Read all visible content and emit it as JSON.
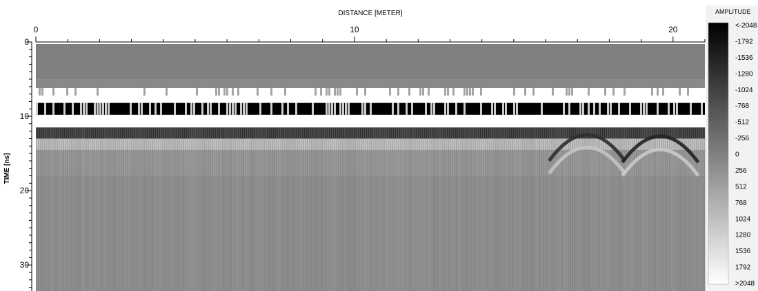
{
  "chart_data": {
    "type": "heatmap",
    "xlabel": "DISTANCE [METER]",
    "ylabel": "TIME [ns]",
    "xlim": [
      0,
      21
    ],
    "ylim": [
      0,
      33.5
    ],
    "x_ticks": [
      "0",
      "10",
      "20"
    ],
    "y_ticks": [
      "0",
      "10",
      "20",
      "30"
    ],
    "legend": {
      "title": "AMPLITUDE",
      "placement": "right",
      "labels": [
        "<-2048",
        "-1792",
        "-1536",
        "-1280",
        "-1024",
        "-768",
        "-512",
        "-256",
        "0",
        "256",
        "512",
        "768",
        "1024",
        "1280",
        "1536",
        "1792",
        ">2048"
      ],
      "color_low": "#000000",
      "color_high": "#ffffff"
    },
    "bands": [
      {
        "t0": 0,
        "t1": 5,
        "amplitude": 0
      },
      {
        "t0": 5,
        "t1": 6.2,
        "amplitude": 150
      },
      {
        "t0": 6.2,
        "t1": 8.2,
        "amplitude": 2048
      },
      {
        "t0": 8.2,
        "t1": 9.8,
        "amplitude": -2048
      },
      {
        "t0": 9.8,
        "t1": 11.5,
        "amplitude": 2048
      },
      {
        "t0": 11.5,
        "t1": 13.0,
        "amplitude": -1300
      },
      {
        "t0": 13.0,
        "t1": 14.5,
        "amplitude": 1100
      },
      {
        "t0": 14.5,
        "t1": 18.0,
        "amplitude": 400
      },
      {
        "t0": 18.0,
        "t1": 33.5,
        "amplitude": 250
      }
    ],
    "hyperbolas": [
      {
        "x": 17.3,
        "t": 12.3,
        "amplitude": -1300
      },
      {
        "x": 17.3,
        "t": 14.0,
        "amplitude": 1100
      },
      {
        "x": 19.6,
        "t": 12.5,
        "amplitude": -1500
      },
      {
        "x": 19.6,
        "t": 14.3,
        "amplitude": 1200
      }
    ]
  }
}
